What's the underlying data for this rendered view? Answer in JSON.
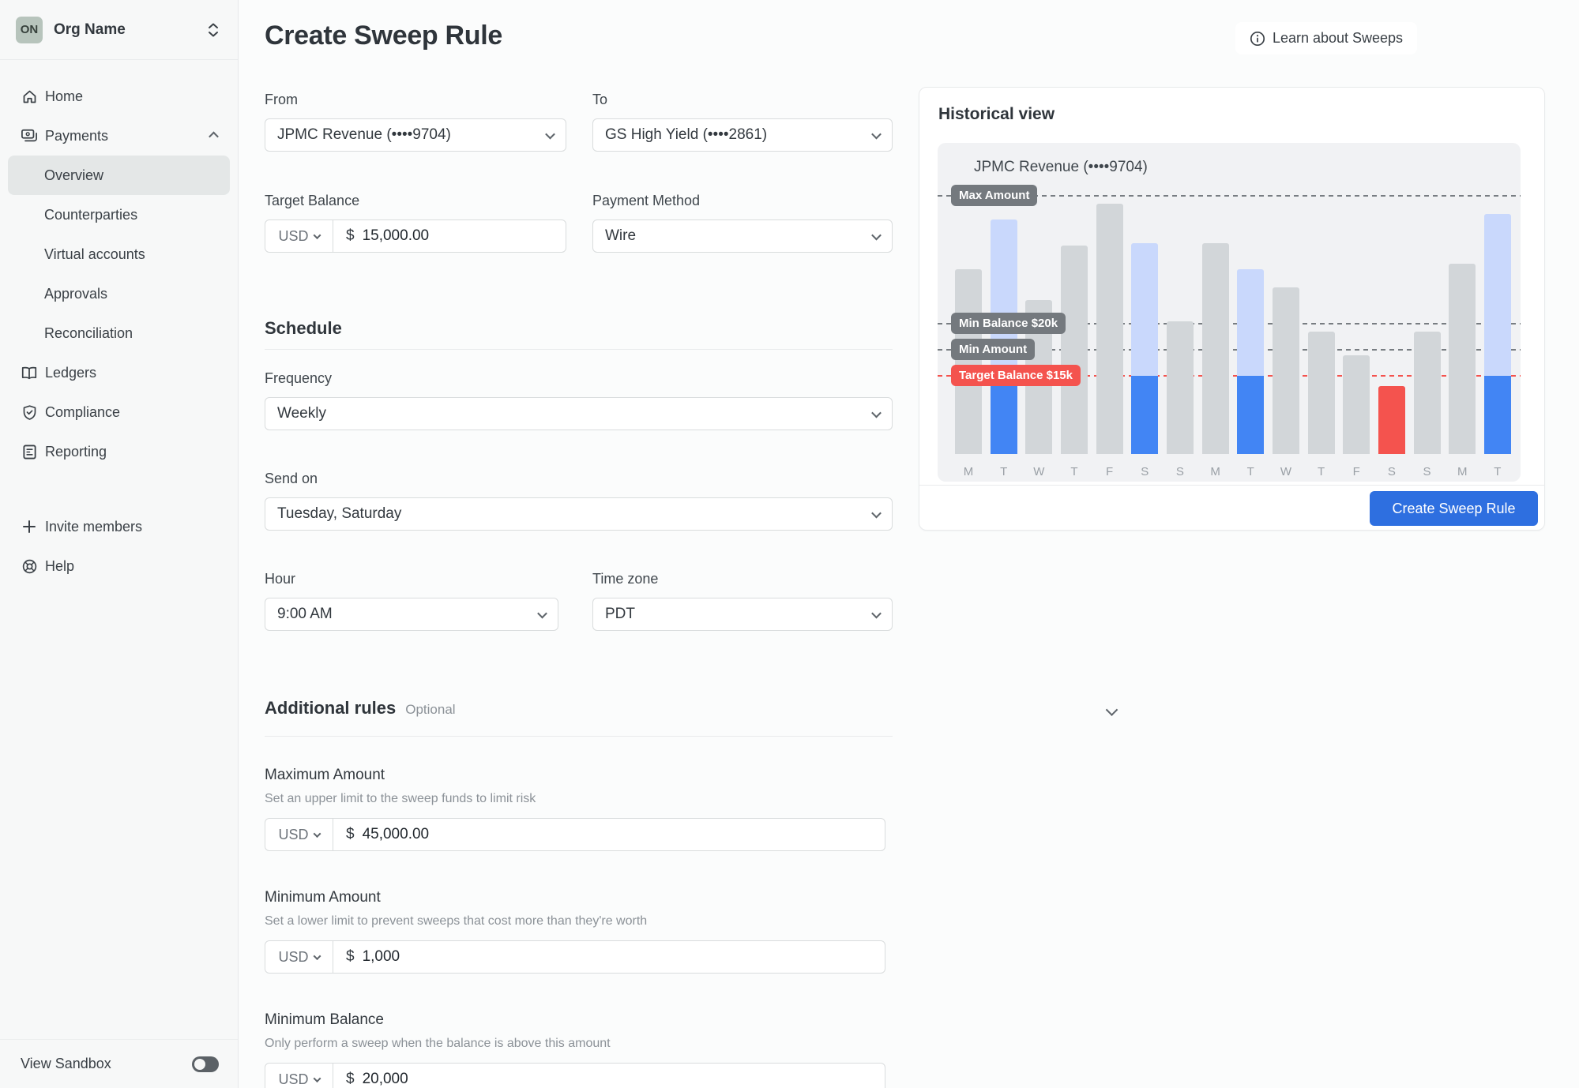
{
  "org": {
    "initials": "ON",
    "name": "Org Name"
  },
  "sidebar": {
    "nav": [
      {
        "label": "Home",
        "icon": "home-icon"
      },
      {
        "label": "Payments",
        "icon": "payments-icon",
        "trailing": "chevron-up-icon",
        "expanded": true
      },
      {
        "label": "Overview",
        "indent": true,
        "active": true
      },
      {
        "label": "Counterparties",
        "indent": true
      },
      {
        "label": "Virtual accounts",
        "indent": true
      },
      {
        "label": "Approvals",
        "indent": true
      },
      {
        "label": "Reconciliation",
        "indent": true
      },
      {
        "label": "Ledgers",
        "icon": "ledgers-icon"
      },
      {
        "label": "Compliance",
        "icon": "compliance-icon"
      },
      {
        "label": "Reporting",
        "icon": "reporting-icon"
      }
    ],
    "footer_nav": [
      {
        "label": "Invite members",
        "icon": "plus-icon"
      },
      {
        "label": "Help",
        "icon": "help-icon"
      }
    ],
    "sandbox": {
      "label": "View Sandbox",
      "enabled": false
    }
  },
  "header": {
    "title": "Create Sweep Rule",
    "learn_button": "Learn about Sweeps"
  },
  "form": {
    "from": {
      "label": "From",
      "value": "JPMC Revenue (••••9704)"
    },
    "to": {
      "label": "To",
      "value": "GS High Yield (••••2861)"
    },
    "target_balance": {
      "label": "Target Balance",
      "currency": "USD",
      "prefix": "$",
      "value": "15,000.00"
    },
    "payment_method": {
      "label": "Payment Method",
      "value": "Wire"
    },
    "schedule_heading": "Schedule",
    "frequency": {
      "label": "Frequency",
      "value": "Weekly"
    },
    "send_on": {
      "label": "Send on",
      "value": "Tuesday, Saturday"
    },
    "hour": {
      "label": "Hour",
      "value": "9:00 AM"
    },
    "time_zone": {
      "label": "Time zone",
      "value": "PDT"
    },
    "additional_rules": {
      "heading": "Additional rules",
      "optional": "Optional"
    },
    "maximum_amount": {
      "label": "Maximum Amount",
      "description": "Set an upper limit to the sweep funds to limit risk",
      "currency": "USD",
      "prefix": "$",
      "value": "45,000.00"
    },
    "minimum_amount": {
      "label": "Minimum Amount",
      "description": "Set a lower limit to prevent sweeps that cost more than they're worth",
      "currency": "USD",
      "prefix": "$",
      "value": "1,000"
    },
    "minimum_balance": {
      "label": "Minimum Balance",
      "description": "Only perform a sweep when the balance is above this amount",
      "currency": "USD",
      "prefix": "$",
      "value": "20,000"
    }
  },
  "panel": {
    "heading": "Historical view",
    "account": "JPMC Revenue (••••9704)",
    "cta": "Create Sweep Rule"
  },
  "chart_data": {
    "type": "bar",
    "title": "JPMC Revenue (••••9704)",
    "x": [
      "M",
      "T",
      "W",
      "T",
      "F",
      "S",
      "S",
      "M",
      "T",
      "W",
      "T",
      "F",
      "S",
      "S",
      "M",
      "T"
    ],
    "values": [
      71,
      90,
      59,
      80,
      96,
      81,
      51,
      81,
      71,
      64,
      47,
      38,
      26,
      47,
      73,
      92
    ],
    "bar_kinds": [
      "normal",
      "sweep",
      "normal",
      "normal",
      "normal",
      "sweep",
      "normal",
      "normal",
      "sweep",
      "normal",
      "normal",
      "normal",
      "below-target",
      "normal",
      "normal",
      "sweep"
    ],
    "ylim": [
      0,
      100
    ],
    "grid": false,
    "thresholds": [
      {
        "label": "Max Amount",
        "value": 99,
        "style": "gray"
      },
      {
        "label": "Min Balance $20k",
        "value": 50,
        "style": "gray"
      },
      {
        "label": "Min Amount",
        "value": 40,
        "style": "gray"
      },
      {
        "label": "Target Balance $15k",
        "value": 30,
        "style": "red"
      }
    ],
    "colors": {
      "normal": "#d2d6d9",
      "sweep_above": "#c9d8fc",
      "sweep_below": "#4285f4",
      "below_target": "#f4534e"
    }
  },
  "colors": {
    "accent_blue": "#2e6fe0",
    "alert_red": "#f4534e",
    "badge_gray": "#74797e",
    "sidebar_bg": "#f7f8f8",
    "selected_bg": "#e4e7e7",
    "avatar_sage": "#b7c4bc"
  }
}
